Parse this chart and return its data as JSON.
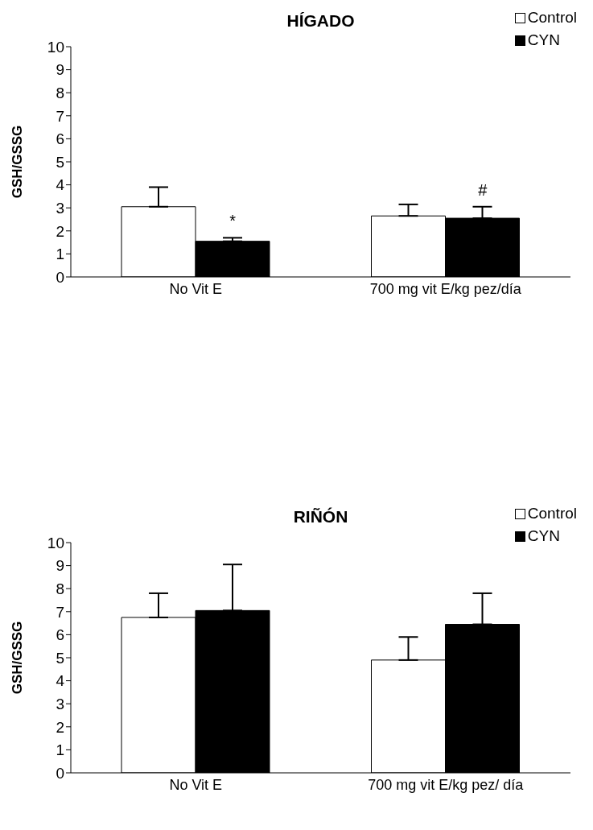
{
  "chart_data": [
    {
      "type": "bar",
      "title": "HÍGADO",
      "ylabel": "GSH/GSSG",
      "categories": [
        "No Vit E",
        "700 mg vit E/kg pez/día"
      ],
      "series": [
        {
          "name": "Control",
          "color": "#ffffff",
          "values": [
            3.05,
            2.65
          ],
          "errors": [
            [
              3.05,
              3.9
            ],
            [
              2.65,
              3.15
            ]
          ]
        },
        {
          "name": "CYN",
          "color": "#000000",
          "values": [
            1.55,
            2.55
          ],
          "errors": [
            [
              1.55,
              1.7
            ],
            [
              2.55,
              3.05
            ]
          ]
        }
      ],
      "ylim": [
        0,
        10
      ],
      "yticks": [
        0,
        1,
        2,
        3,
        4,
        5,
        6,
        7,
        8,
        9,
        10
      ],
      "legend": "top right",
      "annotations": [
        "*",
        "#"
      ]
    },
    {
      "type": "bar",
      "title": "RIÑÓN",
      "ylabel": "GSH/GSSG",
      "categories": [
        "No Vit E",
        "700 mg vit E/kg pez/ día"
      ],
      "series": [
        {
          "name": "Control",
          "color": "#ffffff",
          "values": [
            6.75,
            4.9
          ],
          "errors": [
            [
              6.75,
              7.8
            ],
            [
              4.9,
              5.9
            ]
          ]
        },
        {
          "name": "CYN",
          "color": "#000000",
          "values": [
            7.05,
            6.45
          ],
          "errors": [
            [
              7.05,
              9.05
            ],
            [
              6.45,
              7.8
            ]
          ]
        }
      ],
      "ylim": [
        0,
        10
      ],
      "yticks": [
        0,
        1,
        2,
        3,
        4,
        5,
        6,
        7,
        8,
        9,
        10
      ],
      "legend": "top right"
    }
  ]
}
